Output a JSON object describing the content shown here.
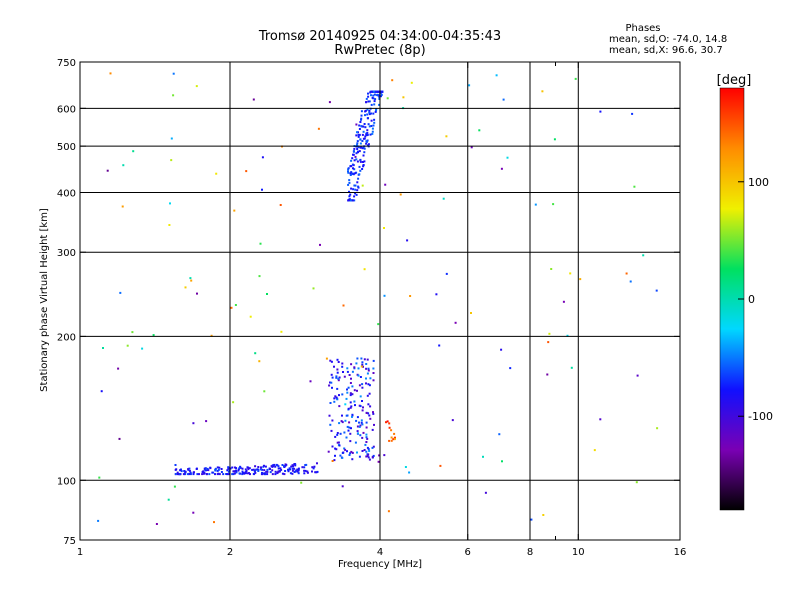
{
  "chart_data": {
    "type": "scatter",
    "title": "Tromsø 20140925 04:34:00-04:35:43",
    "subtitle": "RwPretec (8p)",
    "xlabel": "Frequency [MHz]",
    "ylabel": "Stationary phase Virtual Height [km]",
    "x_scale": "log",
    "y_scale": "log",
    "xlim": [
      1,
      16
    ],
    "ylim": [
      75,
      750
    ],
    "x_ticks": [
      1,
      2,
      4,
      6,
      8,
      10,
      16
    ],
    "x_minor_ticks": [
      9
    ],
    "y_ticks": [
      75,
      100,
      200,
      300,
      400,
      500,
      600,
      750
    ],
    "x_gridlines": [
      2,
      4,
      6,
      8,
      10
    ],
    "y_gridlines": [
      100,
      200,
      300,
      400,
      500,
      600
    ],
    "grid": true,
    "annotation": {
      "heading": "Phases",
      "line1": "mean, sd,O: -74.0, 14.8",
      "line2": "mean, sd,X:  96.6, 30.7"
    },
    "colorbar": {
      "label": "[deg]",
      "range": [
        -180,
        180
      ],
      "ticks": [
        100,
        0,
        -100
      ],
      "colors": [
        "#000000",
        "#7a00b4",
        "#1010ff",
        "#00d8ff",
        "#00e060",
        "#f0f000",
        "#ff8c00",
        "#ff0000"
      ]
    },
    "clusters": [
      {
        "name": "o-trace-e-region",
        "seed": 11,
        "count": 230,
        "x": [
          1.55,
          3.0
        ],
        "y": [
          103,
          112
        ],
        "slope": 0.35,
        "phase": [
          -100,
          -60
        ]
      },
      {
        "name": "e-region-cusp",
        "seed": 12,
        "count": 200,
        "x": [
          3.15,
          3.9
        ],
        "y": [
          110,
          180
        ],
        "slope": 0,
        "phase": [
          -120,
          -40
        ]
      },
      {
        "name": "f-region-trace",
        "seed": 13,
        "count": 260,
        "x": [
          3.45,
          4.05
        ],
        "y": [
          385,
          650
        ],
        "slope": 1.3,
        "phase": [
          -90,
          -50
        ]
      },
      {
        "name": "x-trace-e",
        "seed": 14,
        "count": 12,
        "x": [
          4.1,
          4.3
        ],
        "y": [
          120,
          133
        ],
        "slope": 0,
        "phase": [
          110,
          180
        ]
      },
      {
        "name": "scattered-noise",
        "seed": 15,
        "count": 140,
        "x": [
          1.05,
          14.5
        ],
        "y": [
          80,
          720
        ],
        "slope": 0,
        "phase": [
          -140,
          150
        ]
      }
    ]
  }
}
